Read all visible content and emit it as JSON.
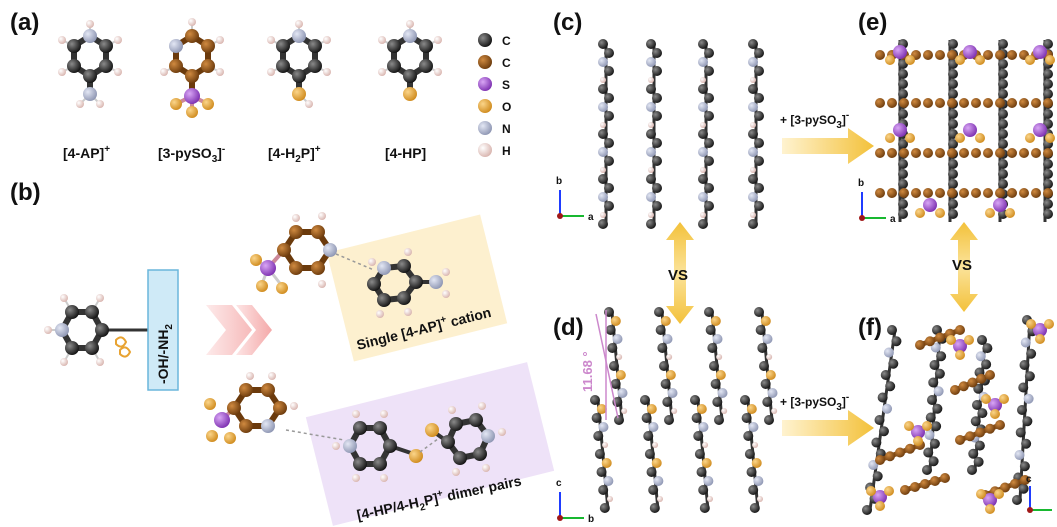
{
  "panels": {
    "a": "(a)",
    "b": "(b)",
    "c": "(c)",
    "d": "(d)",
    "e": "(e)",
    "f": "(f)"
  },
  "molecules": [
    {
      "main": "[4-AP]",
      "sup": "+",
      "sub": ""
    },
    {
      "main": "[3-pySO",
      "sub": "3",
      "tail": "]",
      "sup": "-"
    },
    {
      "main": "[4-H",
      "sub": "2",
      "tail": "P]",
      "sup": "+"
    },
    {
      "main": "[4-HP]",
      "sup": "",
      "sub": ""
    }
  ],
  "legend": [
    {
      "symbol": "C",
      "color": "#222222"
    },
    {
      "symbol": "C",
      "color": "#8a4f16"
    },
    {
      "symbol": "S",
      "color": "#a24fd6"
    },
    {
      "symbol": "O",
      "color": "#e8a332"
    },
    {
      "symbol": "N",
      "color": "#a7aec6"
    },
    {
      "symbol": "H",
      "color": "#efd4cf"
    }
  ],
  "substituent_box": {
    "main": "-OH/-NH",
    "sub": "2"
  },
  "captions": {
    "single": {
      "main": "Single [4-AP]",
      "sup": "+",
      "tail": " cation"
    },
    "dimer": {
      "main": "[4-HP/4-H",
      "sub": "2",
      "tail": "P]",
      "sup": "+",
      "end": " dimer pairs"
    }
  },
  "addition_label": {
    "main": "+ [3-pySO",
    "sub": "3",
    "tail": "]",
    "sup": "-"
  },
  "vs_label": "VS",
  "angle_label": "11.68 °",
  "axes": {
    "c": [
      "b",
      "a"
    ],
    "d": [
      "c",
      "b"
    ],
    "e": [
      "b",
      "a"
    ],
    "f": [
      "c",
      ""
    ]
  },
  "colors": {
    "C_black": "#222222",
    "C_brown": "#8a4f16",
    "S": "#a24fd6",
    "O": "#e8a332",
    "N": "#a7aec6",
    "H": "#efd4cf",
    "arrow": "#f4c84a",
    "pink_arrow": "#f6b4b4",
    "yellow_box": "#fdf0cf",
    "purple_box": "#eee2f8",
    "blue_box": "#cfeaf7",
    "angle": "#cc88cc"
  }
}
